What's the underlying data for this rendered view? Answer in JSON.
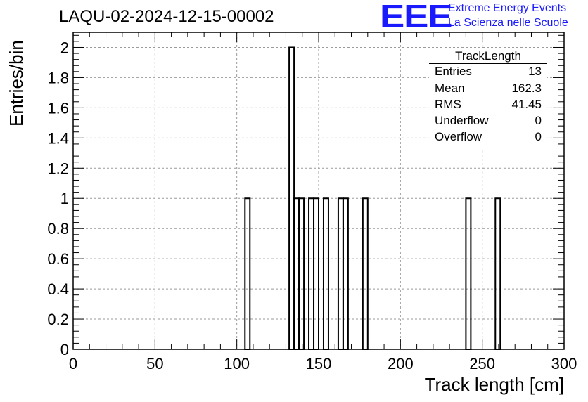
{
  "chart_data": {
    "type": "bar",
    "title": "LAQU-02-2024-12-15-00002",
    "xlabel": "Track length [cm]",
    "ylabel": "Entries/bin",
    "xlim": [
      0,
      300
    ],
    "ylim": [
      0,
      2.1
    ],
    "grid": true,
    "bin_width": 3,
    "xticks": [
      "0",
      "50",
      "100",
      "150",
      "200",
      "250",
      "300"
    ],
    "yticks": [
      "0",
      "0.2",
      "0.4",
      "0.6",
      "0.8",
      "1",
      "1.2",
      "1.4",
      "1.6",
      "1.8",
      "2"
    ],
    "bins": [
      {
        "x0": 105,
        "x1": 108,
        "value": 1
      },
      {
        "x0": 132,
        "x1": 135,
        "value": 2
      },
      {
        "x0": 135,
        "x1": 138,
        "value": 1
      },
      {
        "x0": 138,
        "x1": 141,
        "value": 1
      },
      {
        "x0": 144,
        "x1": 147,
        "value": 1
      },
      {
        "x0": 147,
        "x1": 150,
        "value": 1
      },
      {
        "x0": 153,
        "x1": 156,
        "value": 1
      },
      {
        "x0": 162,
        "x1": 165,
        "value": 1
      },
      {
        "x0": 165,
        "x1": 168,
        "value": 1
      },
      {
        "x0": 177,
        "x1": 180,
        "value": 1
      },
      {
        "x0": 240,
        "x1": 243,
        "value": 1
      },
      {
        "x0": 258,
        "x1": 261,
        "value": 1
      }
    ],
    "stats": {
      "name": "TrackLength",
      "rows": [
        {
          "label": "Entries",
          "value": "13"
        },
        {
          "label": "Mean",
          "value": "162.3"
        },
        {
          "label": "RMS",
          "value": "41.45"
        },
        {
          "label": "Underflow",
          "value": "0"
        },
        {
          "label": "Overflow",
          "value": "0"
        }
      ]
    },
    "line_color": "#000000",
    "grid_color": "#9a9a9a"
  },
  "branding": {
    "logo": "EEE",
    "line1": "Extreme Energy Events",
    "line2": "La Scienza nelle Scuole",
    "color": "#1a1aff"
  }
}
